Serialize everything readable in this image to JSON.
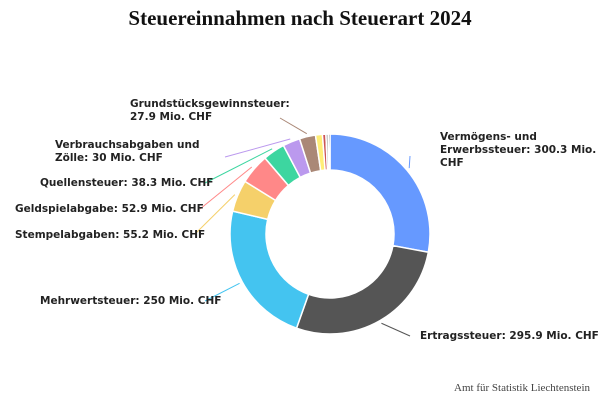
{
  "chart_data": {
    "type": "pie",
    "title": "Steuereinnahmen nach Steuerart 2024",
    "source": "Amt für Statistik Liechtenstein",
    "unit": "Mio. CHF",
    "donut": true,
    "slices": [
      {
        "label": "Vermögens- und Erwerbssteuer",
        "value": 300.3,
        "color": "#6699ff",
        "display": [
          "Vermögens- und",
          "Erwerbssteuer: 300.3 Mio.",
          "CHF"
        ]
      },
      {
        "label": "Ertragssteuer",
        "value": 295.9,
        "color": "#555555",
        "display": [
          "Ertragssteuer: 295.9 Mio. CHF"
        ]
      },
      {
        "label": "Mehrwertsteuer",
        "value": 250,
        "color": "#44c4f0",
        "display": [
          "Mehrwertsteuer: 250 Mio. CHF"
        ]
      },
      {
        "label": "Stempelabgaben",
        "value": 55.2,
        "color": "#f5d06a",
        "display": [
          "Stempelabgaben: 55.2 Mio. CHF"
        ]
      },
      {
        "label": "Geldspielabgabe",
        "value": 52.9,
        "color": "#ff8888",
        "display": [
          "Geldspielabgabe: 52.9 Mio. CHF"
        ]
      },
      {
        "label": "Quellensteuer",
        "value": 38.3,
        "color": "#3dd6a0",
        "display": [
          "Quellensteuer: 38.3 Mio. CHF"
        ]
      },
      {
        "label": "Verbrauchsabgaben und Zölle",
        "value": 30,
        "color": "#bb99ee",
        "display": [
          "Verbrauchsabgaben und",
          "Zölle: 30 Mio. CHF"
        ]
      },
      {
        "label": "Grundstücksgewinnsteuer",
        "value": 27.9,
        "color": "#aa8877",
        "display": [
          "Grundstücksgewinnsteuer:",
          "27.9 Mio. CHF"
        ]
      },
      {
        "label": "",
        "value": 12,
        "color": "#ffee77",
        "display": []
      },
      {
        "label": "",
        "value": 6,
        "color": "#cc5555",
        "display": []
      },
      {
        "label": "",
        "value": 4,
        "color": "#999999",
        "display": []
      },
      {
        "label": "",
        "value": 3,
        "color": "#333333",
        "display": []
      }
    ]
  }
}
